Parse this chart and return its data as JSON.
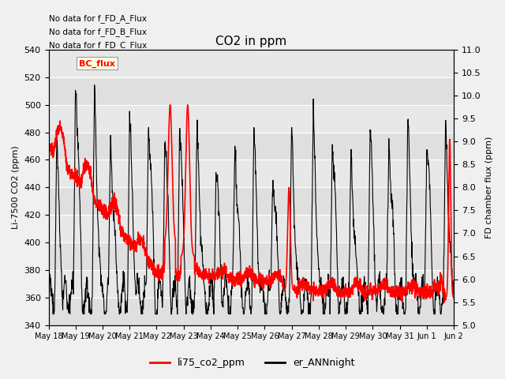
{
  "title": "CO2 in ppm",
  "ylabel_left": "Li-7500 CO2 (ppm)",
  "ylabel_right": "FD chamber flux (ppm)",
  "ylim_left": [
    340,
    540
  ],
  "ylim_right": [
    5.0,
    11.0
  ],
  "yticks_left": [
    340,
    360,
    380,
    400,
    420,
    440,
    460,
    480,
    500,
    520,
    540
  ],
  "yticks_right": [
    5.0,
    5.5,
    6.0,
    6.5,
    7.0,
    7.5,
    8.0,
    8.5,
    9.0,
    9.5,
    10.0,
    10.5,
    11.0
  ],
  "legend_labels": [
    "li75_co2_ppm",
    "er_ANNnight"
  ],
  "legend_colors": [
    "red",
    "black"
  ],
  "no_data_texts": [
    "No data for f_FD_A_Flux",
    "No data for f_FD_B_Flux",
    "No data for f_FD_C_Flux"
  ],
  "bc_flux_label": "BC_flux",
  "background_color": "#f0f0f0",
  "plot_bg_color": "#e8e8e8",
  "grid_color": "white",
  "band1_color": "#dcdcdc",
  "band2_color": "#e8e8e8",
  "n_days": 16,
  "x_tick_labels": [
    "May 18",
    "May 19",
    "May 20",
    "May 21",
    "May 22",
    "May 23",
    "May 24",
    "May 25",
    "May 26",
    "May 27",
    "May 28",
    "May 29",
    "May 30",
    "May 31",
    "Jun 1",
    "Jun 2"
  ]
}
